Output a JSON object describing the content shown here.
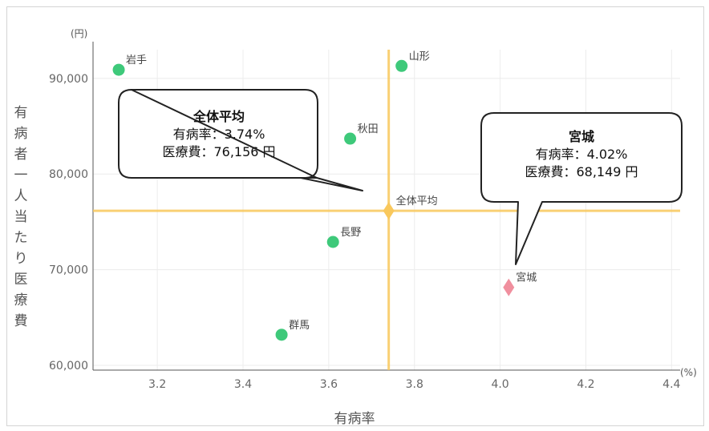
{
  "chart_data": {
    "type": "scatter",
    "xlabel": "有病率",
    "ylabel": "有病者一人当たり医療費",
    "x_unit": "(%)",
    "y_unit": "(円)",
    "xlim": [
      3.05,
      4.42
    ],
    "ylim": [
      59500,
      93000
    ],
    "x_ticks": [
      "3.2",
      "3.4",
      "3.6",
      "3.8",
      "4.0",
      "4.2",
      "4.4"
    ],
    "x_tick_values": [
      3.2,
      3.4,
      3.6,
      3.8,
      4.0,
      4.2,
      4.4
    ],
    "y_ticks": [
      "60,000",
      "70,000",
      "80,000",
      "90,000"
    ],
    "y_tick_values": [
      60000,
      70000,
      80000,
      90000
    ],
    "grid": true,
    "points": [
      {
        "label": "岩手",
        "x": 3.11,
        "y": 90900,
        "color": "#3ec97a",
        "marker": "circle"
      },
      {
        "label": "山形",
        "x": 3.77,
        "y": 91300,
        "color": "#3ec97a",
        "marker": "circle"
      },
      {
        "label": "秋田",
        "x": 3.65,
        "y": 83700,
        "color": "#3ec97a",
        "marker": "circle"
      },
      {
        "label": "長野",
        "x": 3.61,
        "y": 72900,
        "color": "#3ec97a",
        "marker": "circle"
      },
      {
        "label": "群馬",
        "x": 3.49,
        "y": 63200,
        "color": "#3ec97a",
        "marker": "circle"
      },
      {
        "label": "宮城",
        "x": 4.02,
        "y": 68149,
        "color": "#f08f9e",
        "marker": "diamond"
      },
      {
        "label": "全体平均",
        "x": 3.74,
        "y": 76156,
        "color": "#f9c85c",
        "marker": "diamond"
      }
    ],
    "average_lines": {
      "x": 3.74,
      "y": 76156,
      "color": "#f9c85c"
    },
    "callouts": [
      {
        "name": "average",
        "lines": [
          "全体平均",
          "有病率：3.74%",
          "医療費：76,156 円"
        ]
      },
      {
        "name": "miyagi",
        "lines": [
          "宮城",
          "有病率：4.02%",
          "医療費：68,149 円"
        ]
      }
    ]
  }
}
